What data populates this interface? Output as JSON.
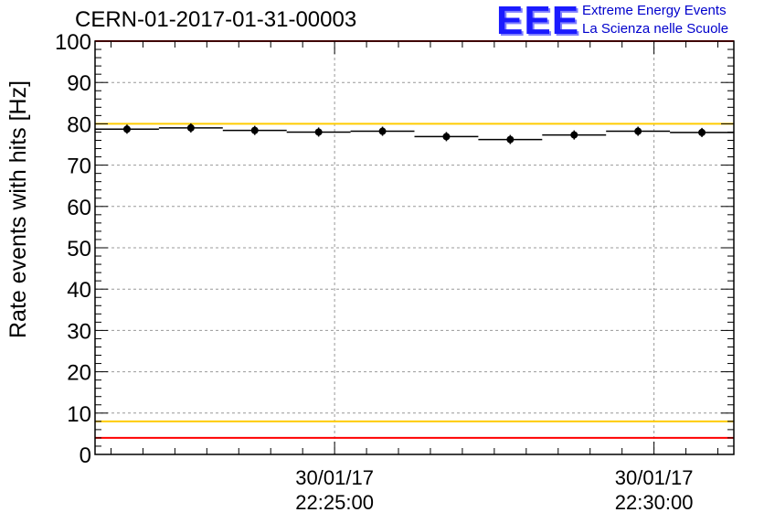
{
  "title": "CERN-01-2017-01-31-00003",
  "logo": {
    "mark": "EEE",
    "line1": "Extreme Energy Events",
    "line2": "La Scienza nelle Scuole"
  },
  "chart_data": {
    "type": "scatter",
    "ylabel": "Rate events with hits [Hz]",
    "xlabel": "",
    "ylim": [
      0,
      100
    ],
    "yticks": [
      "0",
      "10",
      "20",
      "30",
      "40",
      "50",
      "60",
      "70",
      "80",
      "90",
      "100"
    ],
    "xticks": [
      {
        "date": "30/01/17",
        "time": "22:25:00"
      },
      {
        "date": "30/01/17",
        "time": "22:30:00"
      }
    ],
    "x_start": "22:21:15",
    "x_end": "22:31:15",
    "grid": true,
    "series": [
      {
        "x": [
          "22:21:45",
          "22:22:45",
          "22:23:45",
          "22:24:45",
          "22:25:45",
          "22:26:45",
          "22:27:45",
          "22:28:45",
          "22:29:45",
          "22:30:45"
        ],
        "values": [
          78.7,
          79.0,
          78.4,
          78.0,
          78.2,
          76.9,
          76.2,
          77.3,
          78.2,
          77.9
        ]
      }
    ],
    "reference_lines": [
      {
        "value": 100,
        "color": "#ff0000"
      },
      {
        "value": 80,
        "color": "#ffcc00"
      },
      {
        "value": 8,
        "color": "#ffcc00"
      },
      {
        "value": 4,
        "color": "#ff0000"
      }
    ],
    "marker_color": "#000000"
  }
}
